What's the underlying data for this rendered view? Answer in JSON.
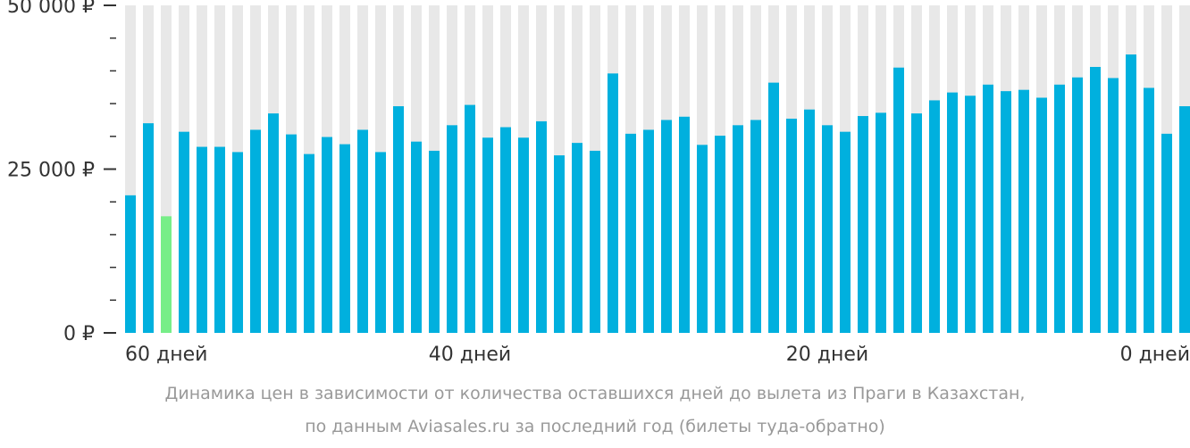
{
  "chart_data": {
    "type": "bar",
    "currency": "₽",
    "ylim": [
      0,
      50000
    ],
    "y_tick_labels": [
      {
        "value": 50000,
        "label": "50 000 ₽"
      },
      {
        "value": 25000,
        "label": "25 000 ₽"
      },
      {
        "value": 0,
        "label": "0 ₽"
      }
    ],
    "y_minor_step": 5000,
    "x_tick_labels": [
      {
        "days": 60,
        "label": "60 дней"
      },
      {
        "days": 40,
        "label": "40 дней"
      },
      {
        "days": 20,
        "label": "20 дней"
      },
      {
        "days": 0,
        "label": "0 дней"
      }
    ],
    "days": [
      59,
      58,
      57,
      56,
      55,
      54,
      53,
      52,
      51,
      50,
      49,
      48,
      47,
      46,
      45,
      44,
      43,
      42,
      41,
      40,
      39,
      38,
      37,
      36,
      35,
      34,
      33,
      32,
      31,
      30,
      29,
      28,
      27,
      26,
      25,
      24,
      23,
      22,
      21,
      20,
      19,
      18,
      17,
      16,
      15,
      14,
      13,
      12,
      11,
      10,
      9,
      8,
      7,
      6,
      5,
      4,
      3,
      2,
      1,
      0
    ],
    "values": [
      21000,
      32000,
      17800,
      30700,
      28400,
      28400,
      27600,
      31000,
      33500,
      30300,
      27300,
      29900,
      28800,
      31000,
      27600,
      34600,
      29200,
      27800,
      31700,
      34800,
      29800,
      31400,
      29800,
      32300,
      27100,
      29000,
      27800,
      39600,
      30400,
      31000,
      32500,
      33000,
      28700,
      30100,
      31700,
      32500,
      38200,
      32700,
      34100,
      31700,
      30700,
      33100,
      33600,
      40500,
      33500,
      35500,
      36700,
      36200,
      37900,
      36900,
      37100,
      35900,
      37900,
      39000,
      40600,
      38900,
      42500,
      37400,
      30400,
      34600
    ],
    "highlight_index": 2,
    "colors": {
      "bar": "#00b0de",
      "highlight": "#77ee88",
      "background_column": "#e8e8e8",
      "axis": "#333333"
    },
    "caption_line1": "Динамика цен в зависимости от количества оставшихся дней до вылета из Праги в Казахстан,",
    "caption_line2": "по данным Aviasales.ru за последний год (билеты туда-обратно)"
  }
}
